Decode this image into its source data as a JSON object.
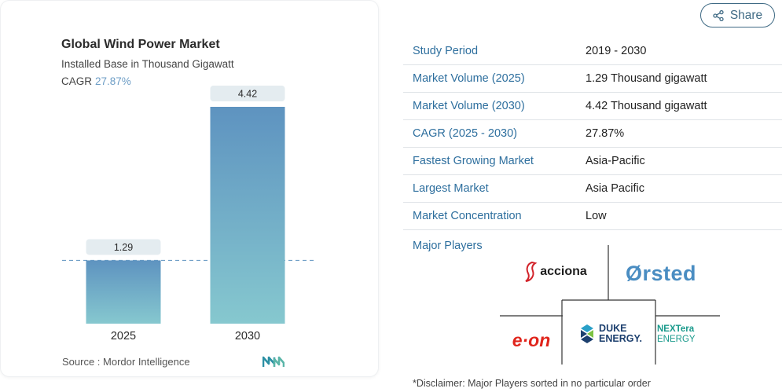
{
  "chart_data": {
    "type": "bar",
    "title": "Global Wind Power Market",
    "subtitle": "Installed Base in Thousand Gigawatt",
    "cagr_label": "CAGR",
    "cagr_value": "27.87%",
    "categories": [
      "2025",
      "2030"
    ],
    "values": [
      1.29,
      4.42
    ],
    "value_labels": [
      "1.29",
      "4.42"
    ],
    "ylim": [
      0,
      4.42
    ],
    "reference_line_at": 1.29,
    "grid": false,
    "colors": {
      "bar_top": "#5e93c0",
      "bar_bottom": "#86c8cf",
      "label_bg": "#e4ecf0",
      "dashed_line": "#6e9ec6"
    }
  },
  "source": {
    "text": "Source :  Mordor Intelligence",
    "logo_icon": "mordor-intelligence-logo"
  },
  "share": {
    "label": "Share",
    "icon": "share-icon",
    "color": "#3f6a84"
  },
  "stats": [
    {
      "label": "Study Period",
      "value": "2019 - 2030"
    },
    {
      "label": "Market Volume (2025)",
      "value": "1.29 Thousand gigawatt"
    },
    {
      "label": "Market Volume (2030)",
      "value": "4.42 Thousand gigawatt"
    },
    {
      "label": "CAGR (2025 - 2030)",
      "value": "27.87%"
    },
    {
      "label": "Fastest Growing Market",
      "value": "Asia-Pacific"
    },
    {
      "label": "Largest Market",
      "value": "Asia Pacific"
    },
    {
      "label": "Market Concentration",
      "value": "Low"
    }
  ],
  "players": {
    "label": "Major Players",
    "logos": [
      {
        "name": "acciona",
        "text": "acciona",
        "color": "#d2232a"
      },
      {
        "name": "orsted",
        "text": "Ørsted",
        "color": "#4a8dc2"
      },
      {
        "name": "eon",
        "text": "e·on",
        "color": "#e0241b"
      },
      {
        "name": "duke-energy",
        "text": [
          "DUKE",
          "ENERGY."
        ],
        "color": "#1c3f6e"
      },
      {
        "name": "nextera-energy",
        "text": [
          "NEXTera",
          "ENERGY"
        ],
        "color": "#1a9a8c"
      }
    ]
  },
  "disclaimer": "*Disclaimer: Major Players sorted in no particular order"
}
